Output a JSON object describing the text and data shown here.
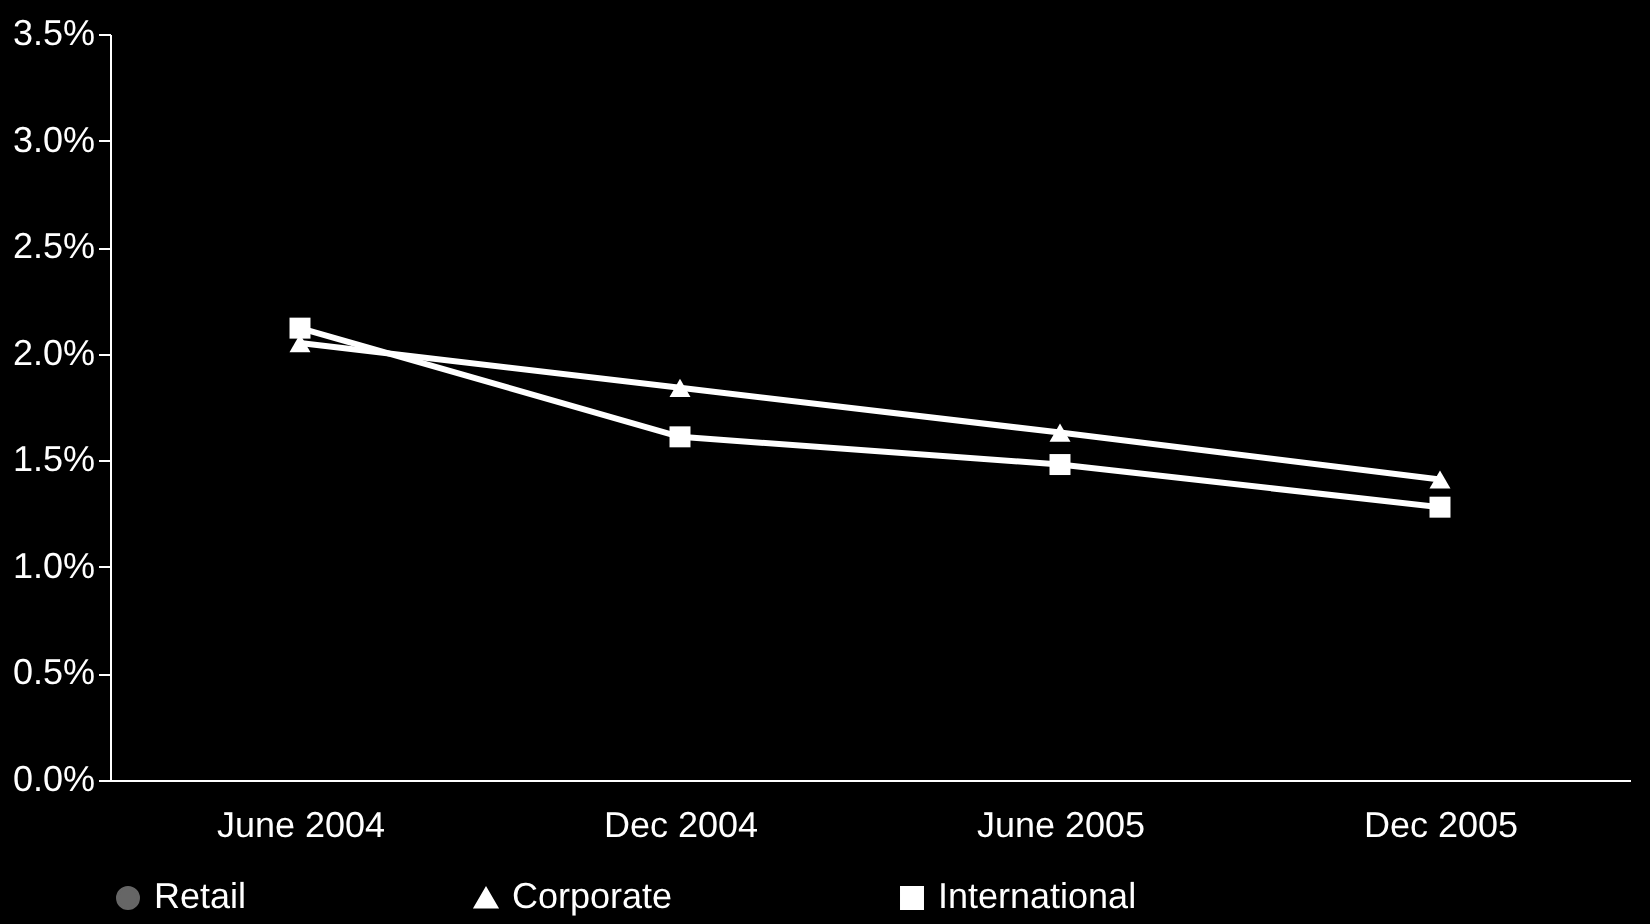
{
  "chart_data": {
    "type": "line",
    "categories": [
      "June 2004",
      "Dec 2004",
      "June 2005",
      "Dec 2005"
    ],
    "series": [
      {
        "name": "Retail",
        "color": "#666666",
        "marker": "circle",
        "values": [
          null,
          null,
          null,
          null
        ]
      },
      {
        "name": "Corporate",
        "color": "#ffffff",
        "marker": "triangle",
        "values": [
          2.05,
          1.84,
          1.63,
          1.41
        ]
      },
      {
        "name": "International",
        "color": "#ffffff",
        "marker": "square",
        "values": [
          2.12,
          1.61,
          1.48,
          1.28
        ]
      }
    ],
    "ylim": [
      0,
      3.5
    ],
    "yticks": [
      {
        "value": 0,
        "label": "0.0%"
      },
      {
        "value": 0.5,
        "label": "0.5%"
      },
      {
        "value": 1,
        "label": "1.0%"
      },
      {
        "value": 1.5,
        "label": "1.5%"
      },
      {
        "value": 2,
        "label": "2.0%"
      },
      {
        "value": 2.5,
        "label": "2.5%"
      },
      {
        "value": 3,
        "label": "3.0%"
      },
      {
        "value": 3.5,
        "label": "3.5%"
      }
    ],
    "grid": false,
    "legend": "bottom",
    "line_style": "solid"
  }
}
